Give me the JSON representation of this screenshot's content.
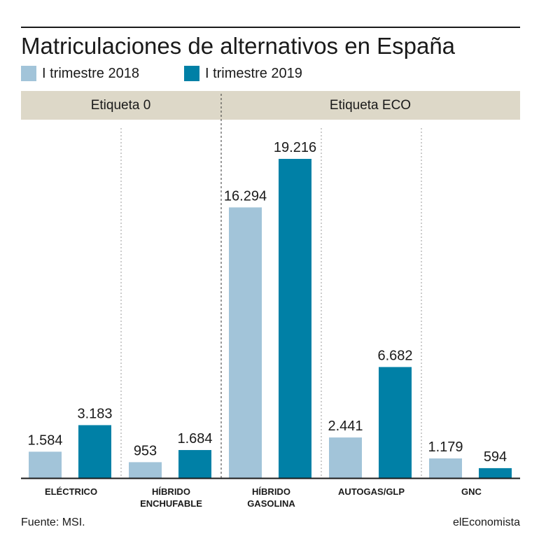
{
  "title": "Matriculaciones de alternativos en España",
  "legend": [
    {
      "label": "I trimestre 2018",
      "color": "#a2c4d9"
    },
    {
      "label": "I trimestre 2019",
      "color": "#0080a6"
    }
  ],
  "groups": [
    {
      "label": "Etiqueta 0"
    },
    {
      "label": "Etiqueta ECO"
    }
  ],
  "chart_data": {
    "type": "bar",
    "categories": [
      "ELÉCTRICO",
      "HÍBRIDO ENCHUFABLE",
      "HÍBRIDO GASOLINA",
      "AUTOGAS/GLP",
      "GNC"
    ],
    "category_lines": [
      [
        "ELÉCTRICO"
      ],
      [
        "HÍBRIDO",
        "ENCHUFABLE"
      ],
      [
        "HÍBRIDO",
        "GASOLINA"
      ],
      [
        "AUTOGAS/GLP"
      ],
      [
        "GNC"
      ]
    ],
    "series": [
      {
        "name": "I trimestre 2018",
        "values": [
          1584,
          953,
          16294,
          2441,
          1179
        ],
        "labels": [
          "1.584",
          "953",
          "16.294",
          "2.441",
          "1.179"
        ]
      },
      {
        "name": "I trimestre 2019",
        "values": [
          3183,
          1684,
          19216,
          6682,
          594
        ],
        "labels": [
          "3.183",
          "1.684",
          "19.216",
          "6.682",
          "594"
        ]
      }
    ],
    "title": "Matriculaciones de alternativos en España",
    "xlabel": "",
    "ylabel": "",
    "ylim": [
      0,
      19216
    ],
    "grid": false,
    "legend_position": "top-left"
  },
  "footer": {
    "source": "Fuente: MSI.",
    "brand": "elEconomista"
  }
}
